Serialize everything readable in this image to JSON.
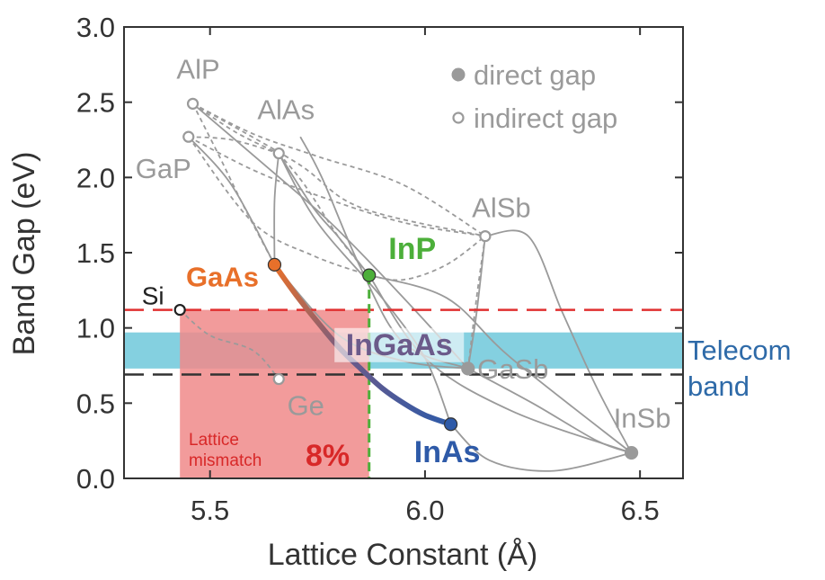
{
  "chart_data": {
    "type": "scatter",
    "xlabel": "Lattice Constant (Å)",
    "ylabel": "Band Gap (eV)",
    "xlim": [
      5.3,
      6.6
    ],
    "ylim": [
      0.0,
      3.0
    ],
    "x_ticks": [
      5.5,
      6.0,
      6.5
    ],
    "x_tick_labels": [
      "5.5",
      "6.0",
      "6.5"
    ],
    "y_ticks": [
      0.0,
      0.5,
      1.0,
      1.5,
      2.0,
      2.5,
      3.0
    ],
    "y_tick_labels": [
      "0.0",
      "0.5",
      "1.0",
      "1.5",
      "2.0",
      "2.5",
      "3.0"
    ],
    "grid": false,
    "legend": {
      "placement": "top-right",
      "direct_label": "direct gap",
      "indirect_label": "indirect gap"
    },
    "colors": {
      "gray": "#9a9a9a",
      "axis": "#333333",
      "gaas": "#e8702a",
      "inp": "#4caf3a",
      "inas": "#2e5aa8",
      "ingaas": "#6b5a8a",
      "si": "#222222",
      "telecom": "#5bc0d6",
      "telecom_text": "#2e6aa8",
      "red": "#e03030",
      "mismatch_fill": "#f08a8a",
      "black_dash": "#333333"
    },
    "points": [
      {
        "name": "AlP",
        "x": 5.46,
        "y": 2.49,
        "gap": "indirect"
      },
      {
        "name": "GaP",
        "x": 5.45,
        "y": 2.27,
        "gap": "indirect"
      },
      {
        "name": "AlAs",
        "x": 5.66,
        "y": 2.16,
        "gap": "indirect"
      },
      {
        "name": "AlSb",
        "x": 6.14,
        "y": 1.61,
        "gap": "indirect"
      },
      {
        "name": "GaAs",
        "x": 5.65,
        "y": 1.42,
        "gap": "direct"
      },
      {
        "name": "InP",
        "x": 5.87,
        "y": 1.35,
        "gap": "direct"
      },
      {
        "name": "Si",
        "x": 5.43,
        "y": 1.12,
        "gap": "indirect"
      },
      {
        "name": "Ge",
        "x": 5.66,
        "y": 0.66,
        "gap": "indirect"
      },
      {
        "name": "GaSb",
        "x": 6.1,
        "y": 0.73,
        "gap": "direct"
      },
      {
        "name": "InAs",
        "x": 6.06,
        "y": 0.36,
        "gap": "direct"
      },
      {
        "name": "InSb",
        "x": 6.48,
        "y": 0.17,
        "gap": "direct"
      }
    ],
    "regions": {
      "telecom_band": {
        "y_min": 0.73,
        "y_max": 0.97,
        "label_line1": "Telecom",
        "label_line2": "band"
      },
      "lattice_mismatch": {
        "x_min": 5.43,
        "x_max": 5.87,
        "y_max": 1.12,
        "label_line1": "Lattice",
        "label_line2": "mismatch",
        "value_label": "8%"
      },
      "si_gap_line": {
        "y": 1.12
      },
      "lower_dashed_line": {
        "y": 0.69
      },
      "inp_lattice_line": {
        "x": 5.87
      }
    },
    "alloy": {
      "name": "InGaAs",
      "path": [
        [
          5.65,
          1.42
        ],
        [
          5.7,
          1.22
        ],
        [
          5.75,
          1.04
        ],
        [
          5.8,
          0.87
        ],
        [
          5.85,
          0.73
        ],
        [
          5.9,
          0.6
        ],
        [
          5.95,
          0.5
        ],
        [
          6.0,
          0.42
        ],
        [
          6.06,
          0.36
        ]
      ]
    },
    "dashed_curves": [
      [
        [
          5.46,
          2.49
        ],
        [
          5.6,
          2.29
        ],
        [
          5.75,
          2.14
        ],
        [
          5.95,
          1.95
        ],
        [
          6.14,
          1.61
        ]
      ],
      [
        [
          5.45,
          2.27
        ],
        [
          5.6,
          2.05
        ],
        [
          5.75,
          1.88
        ],
        [
          5.95,
          1.7
        ],
        [
          6.14,
          1.61
        ]
      ],
      [
        [
          5.46,
          2.49
        ],
        [
          5.56,
          2.3
        ],
        [
          5.66,
          2.16
        ]
      ],
      [
        [
          5.46,
          2.49
        ],
        [
          5.52,
          2.15
        ],
        [
          5.58,
          1.8
        ],
        [
          5.65,
          1.42
        ]
      ],
      [
        [
          5.45,
          2.27
        ],
        [
          5.55,
          2.25
        ],
        [
          5.66,
          2.16
        ]
      ],
      [
        [
          5.45,
          2.27
        ],
        [
          5.6,
          1.7
        ],
        [
          5.74,
          1.48
        ],
        [
          5.87,
          1.35
        ]
      ],
      [
        [
          5.66,
          2.16
        ],
        [
          5.72,
          1.95
        ],
        [
          5.8,
          1.6
        ],
        [
          5.87,
          1.35
        ]
      ],
      [
        [
          5.87,
          1.35
        ],
        [
          5.95,
          1.32
        ],
        [
          6.05,
          1.42
        ],
        [
          6.14,
          1.61
        ]
      ],
      [
        [
          5.46,
          2.49
        ],
        [
          5.7,
          2.1
        ],
        [
          5.85,
          1.8
        ],
        [
          6.14,
          1.61
        ]
      ],
      [
        [
          5.43,
          1.12
        ],
        [
          5.5,
          0.95
        ],
        [
          5.6,
          0.85
        ],
        [
          5.66,
          0.66
        ]
      ],
      [
        [
          6.14,
          1.61
        ],
        [
          6.12,
          1.2
        ],
        [
          6.1,
          0.73
        ]
      ]
    ],
    "solid_curves": [
      [
        [
          5.66,
          2.16
        ],
        [
          5.65,
          1.85
        ],
        [
          5.65,
          1.42
        ]
      ],
      [
        [
          5.66,
          2.16
        ],
        [
          5.74,
          1.8
        ],
        [
          5.8,
          1.6
        ],
        [
          5.87,
          1.35
        ]
      ],
      [
        [
          5.46,
          2.49
        ],
        [
          5.62,
          2.1
        ],
        [
          5.78,
          1.7
        ],
        [
          5.95,
          1.2
        ],
        [
          6.1,
          0.73
        ]
      ],
      [
        [
          5.71,
          2.27
        ],
        [
          5.76,
          2.0
        ],
        [
          5.85,
          1.4
        ],
        [
          5.95,
          0.9
        ],
        [
          6.1,
          0.73
        ]
      ],
      [
        [
          5.66,
          2.16
        ],
        [
          5.75,
          1.7
        ],
        [
          5.9,
          1.2
        ],
        [
          6.0,
          0.8
        ],
        [
          6.06,
          0.36
        ]
      ],
      [
        [
          6.14,
          1.61
        ],
        [
          6.24,
          1.61
        ],
        [
          6.32,
          1.1
        ],
        [
          6.4,
          0.6
        ],
        [
          6.48,
          0.17
        ]
      ],
      [
        [
          5.87,
          1.35
        ],
        [
          6.0,
          0.8
        ],
        [
          6.2,
          0.45
        ],
        [
          6.48,
          0.17
        ]
      ],
      [
        [
          5.87,
          1.35
        ],
        [
          6.05,
          1.2
        ],
        [
          6.2,
          0.8
        ],
        [
          6.48,
          0.17
        ]
      ],
      [
        [
          5.65,
          1.42
        ],
        [
          5.8,
          0.95
        ],
        [
          5.95,
          0.78
        ],
        [
          6.1,
          0.73
        ]
      ],
      [
        [
          6.1,
          0.73
        ],
        [
          6.25,
          0.5
        ],
        [
          6.4,
          0.25
        ],
        [
          6.48,
          0.17
        ]
      ],
      [
        [
          6.06,
          0.36
        ],
        [
          6.15,
          0.12
        ],
        [
          6.3,
          0.05
        ],
        [
          6.48,
          0.17
        ]
      ],
      [
        [
          6.1,
          0.73
        ],
        [
          6.12,
          1.1
        ],
        [
          6.14,
          1.61
        ]
      ],
      [
        [
          5.45,
          2.27
        ],
        [
          5.55,
          1.95
        ],
        [
          5.65,
          1.42
        ]
      ]
    ]
  }
}
